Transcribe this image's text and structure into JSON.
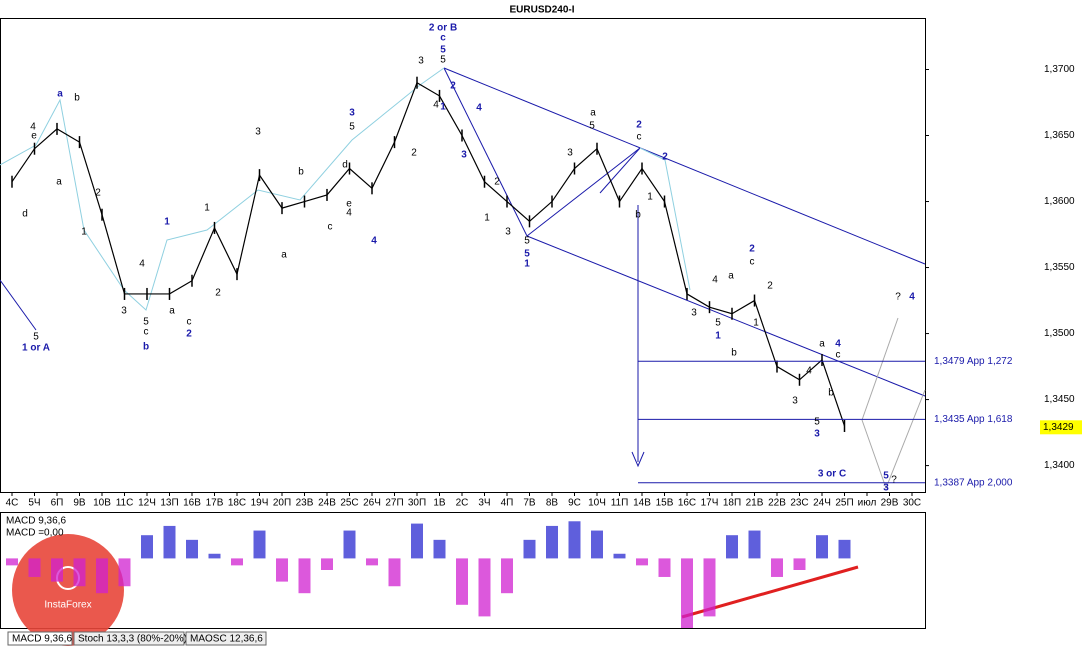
{
  "chart_data": {
    "type": "line",
    "title": "EURUSD240-I",
    "categories": [
      "4С",
      "5Ч",
      "6П",
      "9В",
      "10В",
      "11С",
      "12Ч",
      "13П",
      "16В",
      "17В",
      "18С",
      "19Ч",
      "20П",
      "23В",
      "24В",
      "25С",
      "26Ч",
      "27П",
      "30П",
      "1В",
      "2С",
      "3Ч",
      "4П",
      "7В",
      "8В",
      "9С",
      "10Ч",
      "11П",
      "14В",
      "15В",
      "16С",
      "17Ч",
      "18П",
      "21В",
      "22В",
      "23С",
      "24Ч",
      "25П",
      "июл",
      "29В",
      "30С"
    ],
    "values": [
      1.3615,
      1.364,
      1.3655,
      1.3645,
      1.359,
      1.353,
      1.353,
      1.353,
      1.354,
      1.358,
      1.3545,
      1.362,
      1.3595,
      1.36,
      1.3605,
      1.3625,
      1.361,
      1.3645,
      1.369,
      1.368,
      1.365,
      1.3615,
      1.36,
      1.3585,
      1.36,
      1.3625,
      1.364,
      1.36,
      1.3625,
      1.36,
      1.353,
      1.352,
      1.3515,
      1.3525,
      1.3475,
      1.3465,
      1.348,
      1.343,
      null,
      null,
      null
    ],
    "color": "#000000",
    "ylim": [
      1.338,
      1.3739
    ],
    "yticks": [
      {
        "value": 1.34,
        "label": "1,3400"
      },
      {
        "value": 1.345,
        "label": "1,3450"
      },
      {
        "value": 1.35,
        "label": "1,3500"
      },
      {
        "value": 1.355,
        "label": "1,3550"
      },
      {
        "value": 1.36,
        "label": "1,3600"
      },
      {
        "value": 1.365,
        "label": "1,3650"
      },
      {
        "value": 1.37,
        "label": "1,3700"
      }
    ],
    "current_price": {
      "value": 1.3429,
      "label": "1,3429"
    },
    "levels": [
      {
        "value": 1.3479,
        "label": "1,3479 App 1,272"
      },
      {
        "value": 1.3435,
        "label": "1,3435 App 1,618"
      },
      {
        "value": 1.3387,
        "label": "1,3387 App 2,000"
      }
    ],
    "annotations": [
      {
        "text": "2 or B",
        "color": "#1a1aaa"
      },
      {
        "text": "c",
        "color": "#1a1aaa"
      },
      {
        "text": "5",
        "color": "#1a1aaa"
      },
      {
        "text": "5",
        "color": "#000"
      },
      {
        "text": "3",
        "color": "#000"
      },
      {
        "text": "4",
        "color": "#000"
      },
      {
        "text": "1",
        "color": "#1a1aaa"
      },
      {
        "text": "2",
        "color": "#1a1aaa"
      },
      {
        "text": "4",
        "color": "#1a1aaa"
      },
      {
        "text": "3",
        "color": "#1a1aaa"
      },
      {
        "text": "2",
        "color": "#000"
      },
      {
        "text": "1",
        "color": "#000"
      },
      {
        "text": "3",
        "color": "#000"
      },
      {
        "text": "5",
        "color": "#000"
      },
      {
        "text": "5",
        "color": "#1a1aaa"
      },
      {
        "text": "1",
        "color": "#1a1aaa"
      },
      {
        "text": "a",
        "color": "#000"
      },
      {
        "text": "5",
        "color": "#000"
      },
      {
        "text": "2",
        "color": "#1a1aaa"
      },
      {
        "text": "c",
        "color": "#000"
      },
      {
        "text": "b",
        "color": "#000"
      },
      {
        "text": "3",
        "color": "#000"
      },
      {
        "text": "2",
        "color": "#1a1aaa"
      },
      {
        "text": "1",
        "color": "#000"
      },
      {
        "text": "a",
        "color": "#1a1aaa"
      },
      {
        "text": "b",
        "color": "#000"
      },
      {
        "text": "4",
        "color": "#000"
      },
      {
        "text": "e",
        "color": "#000"
      },
      {
        "text": "a",
        "color": "#000"
      },
      {
        "text": "d",
        "color": "#000"
      },
      {
        "text": "5",
        "color": "#000"
      },
      {
        "text": "1 or A",
        "color": "#1a1aaa"
      },
      {
        "text": "2",
        "color": "#000"
      },
      {
        "text": "1",
        "color": "#000"
      },
      {
        "text": "3",
        "color": "#000"
      },
      {
        "text": "5",
        "color": "#000"
      },
      {
        "text": "c",
        "color": "#000"
      },
      {
        "text": "b",
        "color": "#1a1aaa"
      },
      {
        "text": "1",
        "color": "#1a1aaa"
      },
      {
        "text": "4",
        "color": "#000"
      },
      {
        "text": "a",
        "color": "#000"
      },
      {
        "text": "c",
        "color": "#000"
      },
      {
        "text": "2",
        "color": "#1a1aaa"
      },
      {
        "text": "1",
        "color": "#000"
      },
      {
        "text": "2",
        "color": "#000"
      },
      {
        "text": "3",
        "color": "#000"
      },
      {
        "text": "b",
        "color": "#000"
      },
      {
        "text": "a",
        "color": "#000"
      },
      {
        "text": "c",
        "color": "#000"
      },
      {
        "text": "3",
        "color": "#1a1aaa"
      },
      {
        "text": "5",
        "color": "#000"
      },
      {
        "text": "d",
        "color": "#000"
      },
      {
        "text": "e",
        "color": "#000"
      },
      {
        "text": "4",
        "color": "#000"
      },
      {
        "text": "4",
        "color": "#1a1aaa"
      },
      {
        "text": "2",
        "color": "#000"
      },
      {
        "text": "4",
        "color": "#000"
      },
      {
        "text": "a",
        "color": "#000"
      },
      {
        "text": "2",
        "color": "#1a1aaa"
      },
      {
        "text": "c",
        "color": "#000"
      },
      {
        "text": "2",
        "color": "#000"
      },
      {
        "text": "3",
        "color": "#000"
      },
      {
        "text": "5",
        "color": "#000"
      },
      {
        "text": "1",
        "color": "#1a1aaa"
      },
      {
        "text": "b",
        "color": "#000"
      },
      {
        "text": "1",
        "color": "#000"
      },
      {
        "text": "a",
        "color": "#000"
      },
      {
        "text": "4",
        "color": "#1a1aaa"
      },
      {
        "text": "c",
        "color": "#000"
      },
      {
        "text": "4",
        "color": "#000"
      },
      {
        "text": "b",
        "color": "#000"
      },
      {
        "text": "3",
        "color": "#000"
      },
      {
        "text": "5",
        "color": "#000"
      },
      {
        "text": "3",
        "color": "#1a1aaa"
      },
      {
        "text": "3 or C",
        "color": "#1a1aaa"
      },
      {
        "text": "5",
        "color": "#1a1aaa"
      },
      {
        "text": "3",
        "color": "#1a1aaa"
      },
      {
        "text": "?",
        "color": "#000"
      },
      {
        "text": "?",
        "color": "#000"
      },
      {
        "text": "4",
        "color": "#1a1aaa"
      }
    ],
    "macd": {
      "label": "MACD 9,36,6",
      "value_label": "MACD =0,00",
      "values": [
        -3,
        -8,
        -10,
        -12,
        -15,
        -12,
        10,
        14,
        8,
        2,
        -3,
        12,
        -10,
        -15,
        -5,
        12,
        -3,
        -12,
        15,
        8,
        -20,
        -25,
        -15,
        8,
        14,
        16,
        12,
        2,
        -3,
        -8,
        -30,
        -25,
        10,
        12,
        -8,
        -5,
        10,
        8,
        null,
        null,
        null
      ],
      "ylim": [
        -30,
        20
      ],
      "positive_color": "#2a2ad0",
      "negative_color": "#d020d0"
    },
    "tabs": [
      "MACD 9,36,6",
      "Stoch 13,3,3 (80%-20%)",
      "MAOSC 12,36,6"
    ],
    "logo": "InstaForex"
  }
}
